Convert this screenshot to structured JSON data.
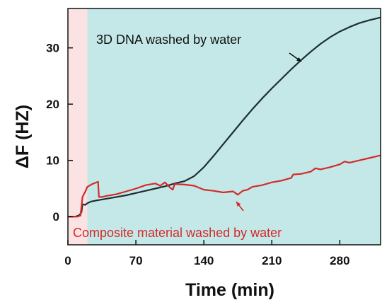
{
  "chart_data": {
    "type": "line",
    "xlabel": "Time (min)",
    "ylabel": "ΔF (HZ)",
    "xlim": [
      0,
      322
    ],
    "ylim": [
      -5,
      37
    ],
    "xticks": [
      0,
      70,
      140,
      210,
      280
    ],
    "yticks": [
      0,
      10,
      20,
      30
    ],
    "regions": [
      {
        "x_start": 0,
        "x_end": 20,
        "color": "#fbe3e3"
      },
      {
        "x_start": 20,
        "x_end": 322,
        "color": "#c4e8e8"
      }
    ],
    "series": [
      {
        "name": "3D DNA washed by water",
        "color": "#1c2e30",
        "x": [
          0,
          8,
          12,
          14,
          15,
          18,
          20,
          24,
          30,
          40,
          50,
          60,
          70,
          80,
          90,
          100,
          110,
          120,
          130,
          140,
          150,
          160,
          170,
          180,
          190,
          200,
          210,
          220,
          230,
          240,
          250,
          260,
          270,
          280,
          290,
          300,
          310,
          322
        ],
        "y": [
          0,
          0,
          0.3,
          0.8,
          2.2,
          2.1,
          2.4,
          2.7,
          2.9,
          3.2,
          3.5,
          3.8,
          4.2,
          4.6,
          5.0,
          5.4,
          5.9,
          6.3,
          7.2,
          8.8,
          10.8,
          12.9,
          15.0,
          17.1,
          19.1,
          21.0,
          22.8,
          24.5,
          26.2,
          27.8,
          29.3,
          30.7,
          31.9,
          32.9,
          33.7,
          34.4,
          34.9,
          35.4
        ]
      },
      {
        "name": "Composite material washed by water",
        "color": "#d42a2a",
        "x": [
          0,
          10,
          13,
          15,
          18,
          20,
          24,
          28,
          31,
          32,
          35,
          40,
          50,
          60,
          70,
          80,
          90,
          95,
          100,
          105,
          108,
          110,
          120,
          130,
          140,
          150,
          160,
          170,
          175,
          180,
          185,
          190,
          200,
          210,
          220,
          230,
          232,
          240,
          250,
          255,
          260,
          270,
          280,
          285,
          290,
          300,
          310,
          322
        ],
        "y": [
          0,
          0,
          0.2,
          3.5,
          4.5,
          5.3,
          5.7,
          6.0,
          6.2,
          3.5,
          3.5,
          3.7,
          4.0,
          4.5,
          5.0,
          5.6,
          5.9,
          5.5,
          6.1,
          5.2,
          4.8,
          5.8,
          5.7,
          5.5,
          4.8,
          4.6,
          4.3,
          4.5,
          3.9,
          4.6,
          4.8,
          5.3,
          5.6,
          6.1,
          6.4,
          6.9,
          7.5,
          7.6,
          8.0,
          8.6,
          8.4,
          8.8,
          9.3,
          9.8,
          9.6,
          10.0,
          10.4,
          10.9
        ]
      }
    ],
    "annotations": {
      "dna": {
        "text": "3D DNA washed by water",
        "color": "#111111"
      },
      "composite": {
        "text": "Composite material washed by water",
        "color": "#d42a2a"
      }
    }
  }
}
